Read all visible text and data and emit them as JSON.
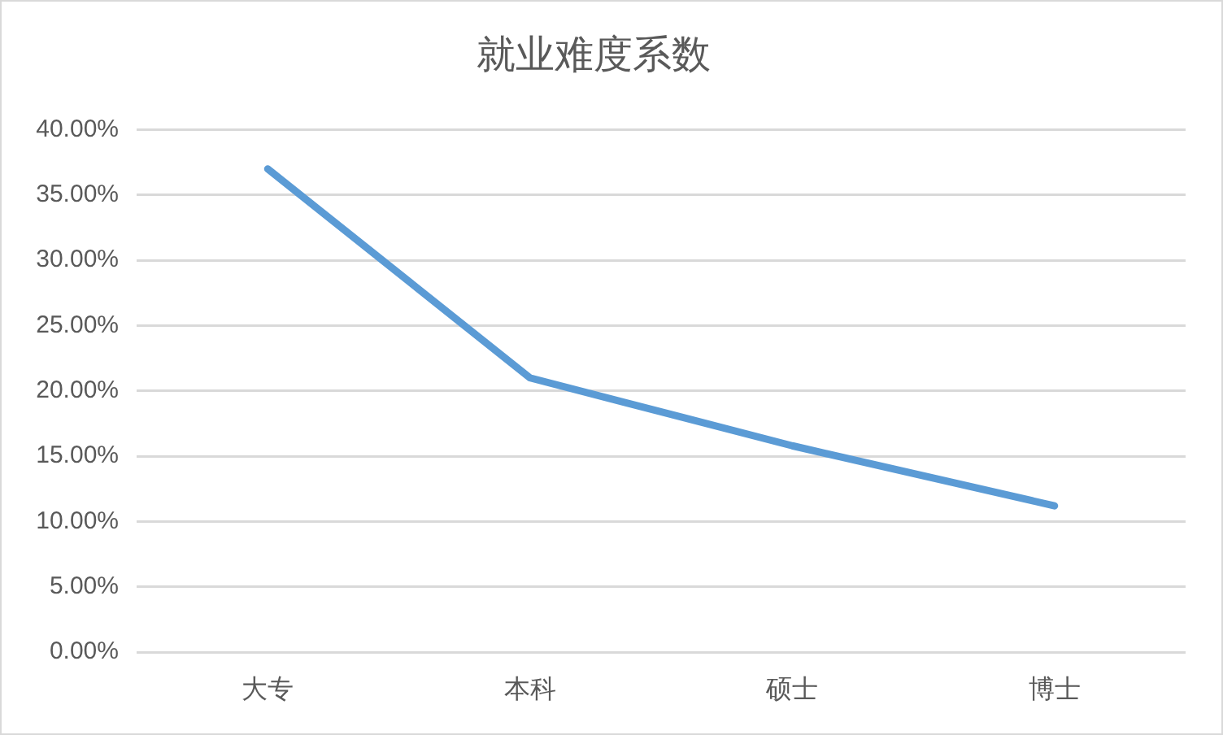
{
  "chart_data": {
    "type": "line",
    "title": "就业难度系数",
    "categories": [
      "大专",
      "本科",
      "硕士",
      "博士"
    ],
    "series": [
      {
        "color": "#5b9bd5",
        "values": [
          37.0,
          21.0,
          15.8,
          11.2
        ]
      }
    ],
    "ylim": [
      0,
      40
    ],
    "yticks": [
      {
        "value": 0,
        "label": "0.00%"
      },
      {
        "value": 5,
        "label": "5.00%"
      },
      {
        "value": 10,
        "label": "10.00%"
      },
      {
        "value": 15,
        "label": "15.00%"
      },
      {
        "value": 20,
        "label": "20.00%"
      },
      {
        "value": 25,
        "label": "25.00%"
      },
      {
        "value": 30,
        "label": "30.00%"
      },
      {
        "value": 35,
        "label": "35.00%"
      },
      {
        "value": 40,
        "label": "40.00%"
      }
    ],
    "grid": "y",
    "marker": "none",
    "line_style": "solid"
  }
}
